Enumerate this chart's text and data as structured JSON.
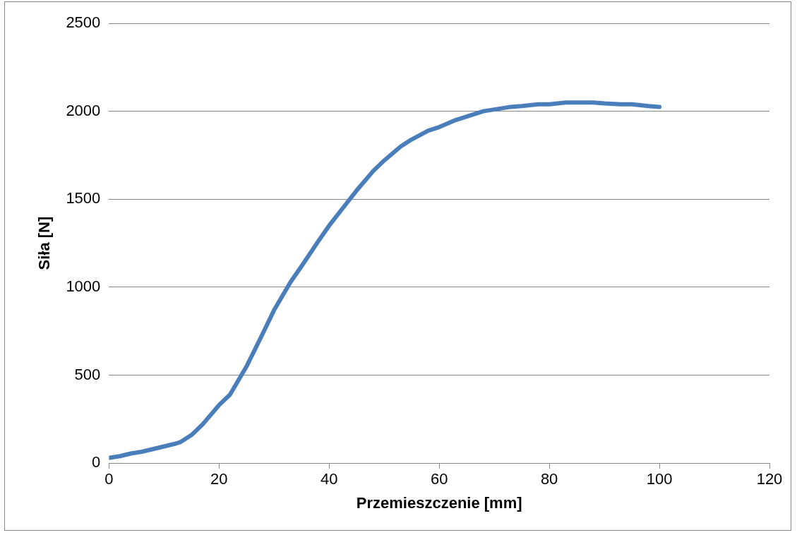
{
  "chart_data": {
    "type": "line",
    "xlabel": "Przemieszczenie [mm]",
    "ylabel": "Siła [N]",
    "xlim": [
      0,
      120
    ],
    "xticks": [
      0,
      20,
      40,
      60,
      80,
      100,
      120
    ],
    "ylim": [
      0,
      2500
    ],
    "yticks": [
      0,
      500,
      1000,
      1500,
      2000,
      2500
    ],
    "grid": "y",
    "marker": "none",
    "line_style": "solid",
    "series": [
      {
        "color": "#4a7ebb",
        "x": [
          0,
          2,
          4,
          6,
          8,
          10,
          12,
          13,
          15,
          17,
          20,
          22,
          25,
          28,
          30,
          33,
          35,
          38,
          40,
          43,
          45,
          48,
          50,
          53,
          55,
          58,
          60,
          63,
          65,
          68,
          70,
          73,
          75,
          78,
          80,
          83,
          85,
          88,
          90,
          93,
          95,
          98,
          100
        ],
        "values": [
          30,
          40,
          55,
          65,
          80,
          95,
          110,
          120,
          160,
          220,
          330,
          390,
          550,
          740,
          870,
          1030,
          1120,
          1260,
          1350,
          1470,
          1550,
          1660,
          1720,
          1800,
          1840,
          1890,
          1910,
          1950,
          1970,
          2000,
          2010,
          2025,
          2030,
          2040,
          2040,
          2050,
          2050,
          2050,
          2045,
          2040,
          2040,
          2030,
          2025
        ]
      }
    ]
  }
}
